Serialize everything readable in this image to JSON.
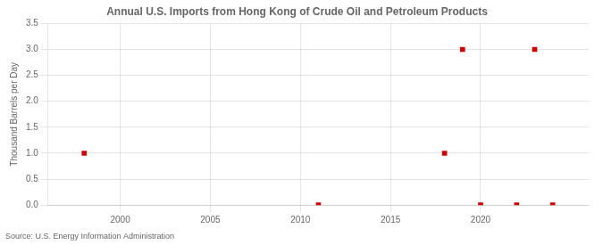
{
  "chart_data": {
    "type": "scatter",
    "title": "Annual U.S. Imports from Hong Kong of Crude Oil and Petroleum Products",
    "ylabel": "Thousand Barrels per Day",
    "annotations": [
      "Source: U.S. Energy Information Administration"
    ],
    "x": [
      1998,
      2011,
      2018,
      2019,
      2020,
      2022,
      2023,
      2024
    ],
    "values": [
      1.0,
      0.0,
      1.0,
      3.0,
      0.0,
      0.0,
      3.0,
      0.0
    ],
    "color": "#cc0000",
    "marker": "square",
    "xlim": [
      1996,
      2026
    ],
    "xticks": [
      2000,
      2005,
      2010,
      2015,
      2020
    ],
    "ylim": [
      0.0,
      3.5
    ],
    "yticks": [
      {
        "value": 0,
        "label": "0.0"
      },
      0.5,
      {
        "value": 1,
        "label": "1.0"
      },
      1.5,
      {
        "value": 2,
        "label": "2.0"
      },
      2.5,
      {
        "value": 3,
        "label": "3.0"
      },
      3.5
    ],
    "grid": true
  }
}
